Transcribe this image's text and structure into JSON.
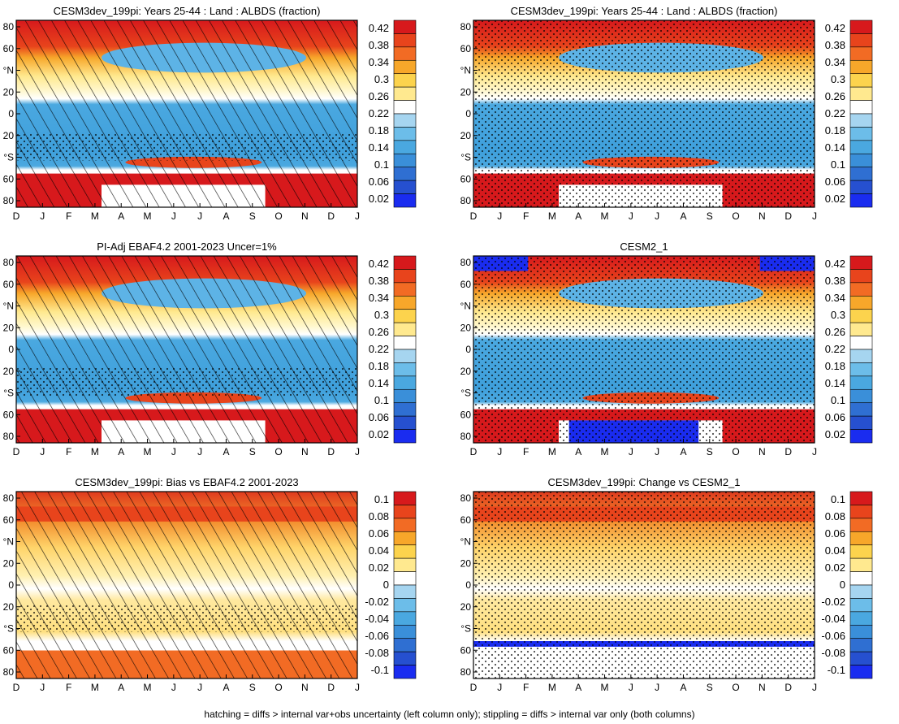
{
  "footnote": "hatching = diffs > internal var+obs uncertainty (left column only); stippling = diffs > internal var only (both columns)",
  "chart_data": [
    {
      "type": "heatmap",
      "title": "CESM3dev_199pi: Years 25-44 : Land : ALBDS (fraction)",
      "x_ticks": [
        "D",
        "J",
        "F",
        "M",
        "A",
        "M",
        "J",
        "J",
        "A",
        "S",
        "O",
        "N",
        "D",
        "J"
      ],
      "y_ticks": [
        "80",
        "60",
        "°N",
        "20",
        "0",
        "20",
        "°S",
        "60",
        "80"
      ],
      "colorbar_labels": [
        "0.42",
        "0.38",
        "0.34",
        "0.3",
        "0.26",
        "0.22",
        "0.18",
        "0.14",
        "0.1",
        "0.06",
        "0.02"
      ],
      "overlay": "hatching+stippling",
      "colors": {
        "high": "#d7191c",
        "mid": "#ffffff",
        "low": "#2b83ba"
      }
    },
    {
      "type": "heatmap",
      "title": "CESM3dev_199pi: Years 25-44 : Land : ALBDS (fraction)",
      "x_ticks": [
        "D",
        "J",
        "F",
        "M",
        "A",
        "M",
        "J",
        "J",
        "A",
        "S",
        "O",
        "N",
        "D",
        "J"
      ],
      "y_ticks": [
        "80",
        "60",
        "°N",
        "20",
        "0",
        "20",
        "°S",
        "60",
        "80"
      ],
      "colorbar_labels": [
        "0.42",
        "0.38",
        "0.34",
        "0.3",
        "0.26",
        "0.22",
        "0.18",
        "0.14",
        "0.1",
        "0.06",
        "0.02"
      ],
      "overlay": "stippling"
    },
    {
      "type": "heatmap",
      "title": "PI-Adj EBAF4.2 2001-2023 Uncer=1%",
      "x_ticks": [
        "D",
        "J",
        "F",
        "M",
        "A",
        "M",
        "J",
        "J",
        "A",
        "S",
        "O",
        "N",
        "D",
        "J"
      ],
      "y_ticks": [
        "80",
        "60",
        "°N",
        "20",
        "0",
        "20",
        "°S",
        "60",
        "80"
      ],
      "colorbar_labels": [
        "0.42",
        "0.38",
        "0.34",
        "0.3",
        "0.26",
        "0.22",
        "0.18",
        "0.14",
        "0.1",
        "0.06",
        "0.02"
      ],
      "overlay": "hatching+stippling"
    },
    {
      "type": "heatmap",
      "title": "CESM2_1",
      "x_ticks": [
        "D",
        "J",
        "F",
        "M",
        "A",
        "M",
        "J",
        "J",
        "A",
        "S",
        "O",
        "N",
        "D",
        "J"
      ],
      "y_ticks": [
        "80",
        "60",
        "°N",
        "20",
        "0",
        "20",
        "°S",
        "60",
        "80"
      ],
      "colorbar_labels": [
        "0.42",
        "0.38",
        "0.34",
        "0.3",
        "0.26",
        "0.22",
        "0.18",
        "0.14",
        "0.1",
        "0.06",
        "0.02"
      ],
      "overlay": "stippling"
    },
    {
      "type": "heatmap",
      "title": "CESM3dev_199pi: Bias vs EBAF4.2 2001-2023",
      "x_ticks": [
        "D",
        "J",
        "F",
        "M",
        "A",
        "M",
        "J",
        "J",
        "A",
        "S",
        "O",
        "N",
        "D",
        "J"
      ],
      "y_ticks": [
        "80",
        "60",
        "°N",
        "20",
        "0",
        "20",
        "°S",
        "60",
        "80"
      ],
      "colorbar_labels": [
        "0.1",
        "0.08",
        "0.06",
        "0.04",
        "0.02",
        "0",
        "-0.02",
        "-0.04",
        "-0.06",
        "-0.08",
        "-0.1"
      ],
      "overlay": "hatching+stippling"
    },
    {
      "type": "heatmap",
      "title": "CESM3dev_199pi: Change vs CESM2_1",
      "x_ticks": [
        "D",
        "J",
        "F",
        "M",
        "A",
        "M",
        "J",
        "J",
        "A",
        "S",
        "O",
        "N",
        "D",
        "J"
      ],
      "y_ticks": [
        "80",
        "60",
        "°N",
        "20",
        "0",
        "20",
        "°S",
        "60",
        "80"
      ],
      "colorbar_labels": [
        "0.1",
        "0.08",
        "0.06",
        "0.04",
        "0.02",
        "0",
        "-0.02",
        "-0.04",
        "-0.06",
        "-0.08",
        "-0.1"
      ],
      "overlay": "stippling"
    }
  ]
}
